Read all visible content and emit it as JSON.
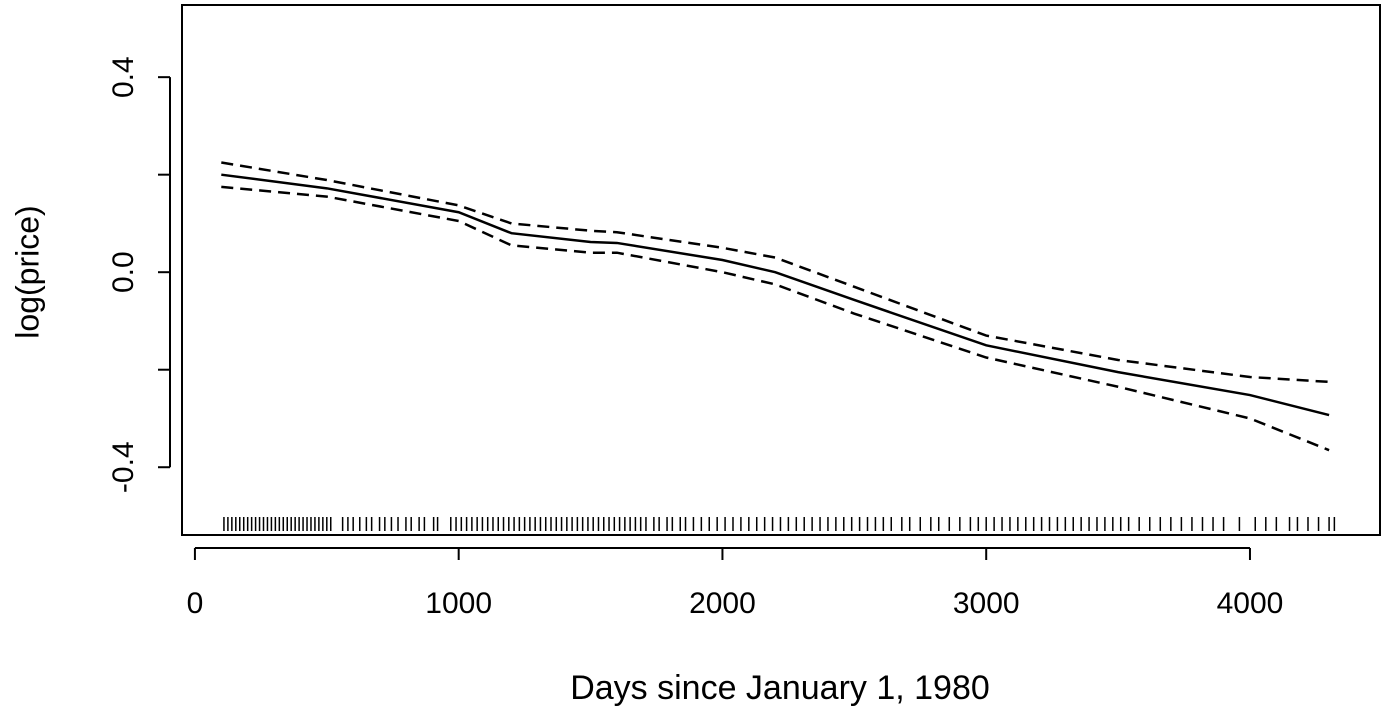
{
  "chart_data": {
    "type": "line",
    "xlabel": "Days since January 1, 1980",
    "ylabel": "log(price)",
    "x": [
      100,
      500,
      1000,
      1200,
      1500,
      1600,
      2000,
      2200,
      2500,
      3000,
      3500,
      4000,
      4300
    ],
    "series": [
      {
        "color": "#000000",
        "dashed": false,
        "values": [
          0.2,
          0.172,
          0.123,
          0.08,
          0.062,
          0.06,
          0.025,
          0.0,
          -0.057,
          -0.15,
          -0.205,
          -0.252,
          -0.293
        ]
      },
      {
        "color": "#000000",
        "dashed": true,
        "values": [
          0.225,
          0.189,
          0.137,
          0.1,
          0.085,
          0.082,
          0.05,
          0.03,
          -0.03,
          -0.13,
          -0.18,
          -0.215,
          -0.225
        ]
      },
      {
        "color": "#000000",
        "dashed": true,
        "values": [
          0.175,
          0.155,
          0.105,
          0.055,
          0.04,
          0.04,
          0.0,
          -0.025,
          -0.085,
          -0.175,
          -0.235,
          -0.3,
          -0.365
        ]
      }
    ],
    "rug": [
      110,
      125,
      140,
      155,
      170,
      185,
      200,
      215,
      230,
      245,
      260,
      275,
      290,
      305,
      320,
      335,
      350,
      365,
      380,
      395,
      410,
      425,
      440,
      455,
      470,
      485,
      500,
      515,
      560,
      580,
      600,
      625,
      650,
      670,
      700,
      720,
      745,
      770,
      800,
      820,
      850,
      870,
      905,
      920,
      970,
      990,
      1010,
      1030,
      1050,
      1070,
      1090,
      1110,
      1130,
      1150,
      1170,
      1190,
      1210,
      1230,
      1250,
      1270,
      1290,
      1310,
      1330,
      1350,
      1370,
      1390,
      1410,
      1430,
      1450,
      1470,
      1490,
      1510,
      1530,
      1550,
      1570,
      1590,
      1610,
      1630,
      1650,
      1670,
      1690,
      1710,
      1740,
      1760,
      1790,
      1810,
      1840,
      1860,
      1890,
      1920,
      1950,
      1980,
      2010,
      2040,
      2070,
      2100,
      2130,
      2160,
      2190,
      2220,
      2250,
      2280,
      2310,
      2340,
      2370,
      2400,
      2430,
      2460,
      2490,
      2520,
      2550,
      2580,
      2610,
      2640,
      2680,
      2710,
      2750,
      2790,
      2820,
      2860,
      2900,
      2940,
      2970,
      3000,
      3030,
      3060,
      3090,
      3120,
      3150,
      3180,
      3210,
      3240,
      3270,
      3300,
      3330,
      3360,
      3390,
      3420,
      3450,
      3480,
      3510,
      3540,
      3580,
      3620,
      3660,
      3700,
      3740,
      3780,
      3820,
      3860,
      3900,
      3960,
      4020,
      4060,
      4100,
      4150,
      4180,
      4220,
      4260,
      4300,
      4320
    ],
    "xlim": [
      -49,
      4493
    ],
    "ylim": [
      -0.539,
      0.548
    ],
    "xticks": [
      0,
      1000,
      2000,
      3000,
      4000
    ],
    "yticks": [
      -0.4,
      {
        "value": -0.2,
        "label": null
      },
      {
        "value": 0,
        "label": "0.0"
      },
      {
        "value": 0.2,
        "label": null
      },
      0.4
    ]
  }
}
